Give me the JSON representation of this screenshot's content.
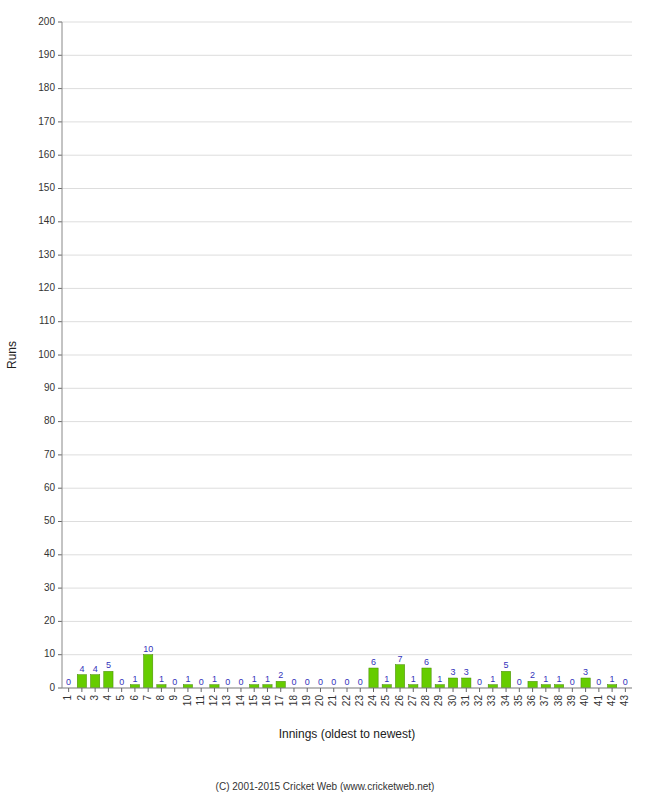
{
  "chart_data": {
    "type": "bar",
    "xlabel": "Innings (oldest to newest)",
    "ylabel": "Runs",
    "categories": [
      "1",
      "2",
      "3",
      "4",
      "5",
      "6",
      "7",
      "8",
      "9",
      "10",
      "11",
      "12",
      "13",
      "14",
      "15",
      "16",
      "17",
      "18",
      "19",
      "20",
      "21",
      "22",
      "23",
      "24",
      "25",
      "26",
      "27",
      "28",
      "29",
      "30",
      "31",
      "32",
      "33",
      "34",
      "35",
      "36",
      "37",
      "38",
      "39",
      "40",
      "41",
      "42",
      "43"
    ],
    "values": [
      0,
      4,
      4,
      5,
      0,
      1,
      10,
      1,
      0,
      1,
      0,
      1,
      0,
      0,
      1,
      1,
      2,
      0,
      0,
      0,
      0,
      0,
      0,
      6,
      1,
      7,
      1,
      6,
      1,
      3,
      3,
      0,
      1,
      5,
      0,
      2,
      1,
      1,
      0,
      3,
      0,
      1,
      0
    ],
    "color": "#66cc00",
    "ylim": [
      0,
      200
    ],
    "yticks": [
      0,
      10,
      20,
      30,
      40,
      50,
      60,
      70,
      80,
      90,
      100,
      110,
      120,
      130,
      140,
      150,
      160,
      170,
      180,
      190,
      200
    ],
    "grid": true,
    "data_labels": true,
    "annotations": [
      "(C) 2001-2015 Cricket Web (www.cricketweb.net)"
    ]
  }
}
